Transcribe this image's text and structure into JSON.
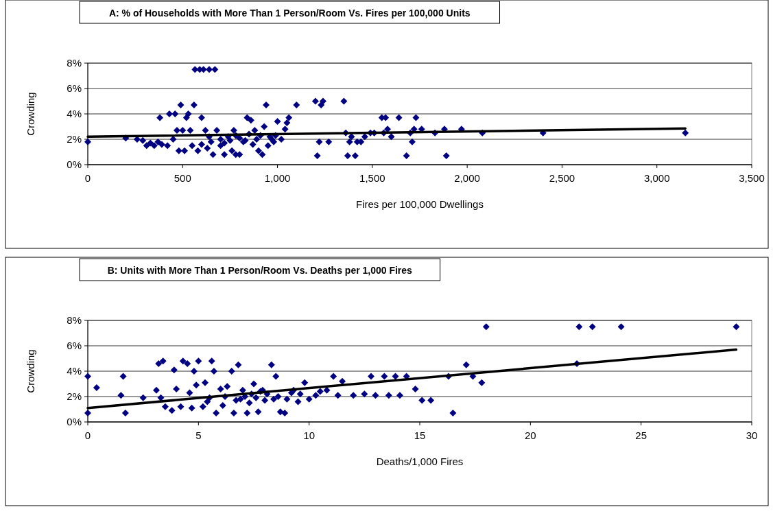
{
  "chart_data": [
    {
      "type": "scatter",
      "title": "A: % of Households with More Than 1 Person/Room Vs. Fires per 100,000 Units",
      "xlabel": "Fires per 100,000 Dwellings",
      "ylabel": "Crowding",
      "xlim": [
        0,
        3500
      ],
      "xticks": [
        0,
        500,
        {
          "value": 1000,
          "label": "1,000"
        },
        {
          "value": 1500,
          "label": "1,500"
        },
        {
          "value": 2000,
          "label": "2,000"
        },
        {
          "value": 2500,
          "label": "2,500"
        },
        {
          "value": 3000,
          "label": "3,000"
        },
        {
          "value": 3500,
          "label": "3,500"
        }
      ],
      "ylim": [
        0,
        8
      ],
      "yticks": [
        {
          "value": 0,
          "label": "0%"
        },
        {
          "value": 2,
          "label": "2%"
        },
        {
          "value": 4,
          "label": "4%"
        },
        {
          "value": 6,
          "label": "6%"
        },
        {
          "value": 8,
          "label": "8%"
        }
      ],
      "grid": "y",
      "series": [
        {
          "color": "#000080",
          "marker": "diamond",
          "x": [
            0,
            200,
            260,
            290,
            310,
            330,
            350,
            370,
            390,
            380,
            420,
            430,
            450,
            460,
            470,
            480,
            490,
            500,
            510,
            520,
            530,
            540,
            550,
            560,
            565,
            580,
            590,
            600,
            610,
            620,
            630,
            640,
            650,
            670,
            660,
            680,
            700,
            720,
            740,
            760,
            770,
            780,
            800,
            820,
            840,
            860,
            880,
            900,
            920,
            930,
            940,
            960,
            980,
            1000,
            1020,
            1040,
            1050,
            1060,
            1100,
            1200,
            1210,
            1220,
            1240,
            1230,
            1270,
            1350,
            1360,
            1370,
            1380,
            1390,
            1410,
            1420,
            1440,
            1460,
            1490,
            1510,
            1550,
            1570,
            1560,
            1580,
            1600,
            1640,
            1680,
            1700,
            1710,
            1720,
            1730,
            1760,
            1830,
            1880,
            1890,
            1970,
            2080,
            2400,
            3150,
            600,
            640,
            700,
            720,
            750,
            780,
            800,
            830,
            850,
            870,
            890,
            910,
            950,
            970,
            990
          ],
          "values": [
            1.8,
            2.1,
            2.0,
            1.9,
            1.5,
            1.7,
            1.5,
            1.8,
            1.6,
            3.7,
            1.5,
            4.0,
            2.0,
            4.0,
            2.7,
            1.1,
            4.7,
            2.7,
            1.1,
            3.7,
            4.0,
            2.7,
            1.5,
            4.7,
            7.5,
            1.1,
            7.5,
            3.7,
            7.5,
            2.7,
            1.3,
            7.5,
            1.8,
            7.5,
            0.8,
            2.7,
            1.5,
            0.8,
            2.2,
            1.1,
            2.7,
            0.8,
            0.8,
            1.8,
            3.7,
            3.5,
            2.7,
            1.1,
            0.8,
            3.0,
            4.7,
            2.2,
            1.8,
            3.4,
            2.0,
            2.8,
            3.3,
            3.7,
            4.7,
            5.0,
            0.7,
            1.8,
            5.0,
            4.7,
            1.8,
            5.0,
            2.5,
            0.7,
            1.8,
            2.2,
            0.7,
            1.8,
            1.8,
            2.2,
            2.5,
            2.5,
            3.7,
            3.7,
            2.5,
            2.8,
            2.2,
            3.7,
            0.7,
            2.5,
            1.8,
            2.8,
            3.7,
            2.8,
            2.5,
            2.8,
            0.7,
            2.8,
            2.5,
            2.5,
            2.5,
            1.6,
            2.2,
            2.0,
            1.7,
            1.9,
            2.3,
            2.1,
            1.9,
            2.4,
            1.6,
            2.0,
            2.3,
            1.5,
            2.0,
            2.3
          ]
        },
        {
          "type": "line",
          "marker": "none",
          "color": "#000000",
          "x": [
            0,
            3150
          ],
          "values": [
            2.2,
            2.85
          ]
        }
      ]
    },
    {
      "type": "scatter",
      "title": "B: Units with More Than 1 Person/Room Vs. Deaths per 1,000 Fires",
      "xlabel": "Deaths/1,000 Fires",
      "ylabel": "Crowding",
      "xlim": [
        0,
        30
      ],
      "xticks": [
        0,
        5,
        10,
        15,
        20,
        25,
        30
      ],
      "ylim": [
        0,
        8
      ],
      "yticks": [
        {
          "value": 0,
          "label": "0%"
        },
        {
          "value": 2,
          "label": "2%"
        },
        {
          "value": 4,
          "label": "4%"
        },
        {
          "value": 6,
          "label": "6%"
        },
        {
          "value": 8,
          "label": "8%"
        }
      ],
      "grid": "y",
      "series": [
        {
          "color": "#000080",
          "marker": "diamond",
          "x": [
            0,
            0,
            0.4,
            1.5,
            1.6,
            1.7,
            2.5,
            3.1,
            3.2,
            3.3,
            3.4,
            3.5,
            3.8,
            3.9,
            4.0,
            4.2,
            4.3,
            4.5,
            4.6,
            4.7,
            4.8,
            4.9,
            5.0,
            5.2,
            5.3,
            5.4,
            5.6,
            5.7,
            5.8,
            6.0,
            6.1,
            6.3,
            6.5,
            6.6,
            6.8,
            6.9,
            7.0,
            7.2,
            7.4,
            7.5,
            7.7,
            7.9,
            8.1,
            8.3,
            8.4,
            8.5,
            8.7,
            8.9,
            9.0,
            9.3,
            9.6,
            9.8,
            10.0,
            10.3,
            10.8,
            11.1,
            11.3,
            11.5,
            12.0,
            12.5,
            12.8,
            13.0,
            13.4,
            13.6,
            13.9,
            14.1,
            14.4,
            14.8,
            15.1,
            15.5,
            16.3,
            16.5,
            17.1,
            17.4,
            17.8,
            18.0,
            22.1,
            22.2,
            22.8,
            24.1,
            29.3,
            5.5,
            6.2,
            6.7,
            7.1,
            7.3,
            7.6,
            7.8,
            8.0,
            8.6,
            9.2,
            9.5,
            10.5
          ],
          "values": [
            3.6,
            0.7,
            2.7,
            2.1,
            3.6,
            0.7,
            1.9,
            2.5,
            4.6,
            1.9,
            4.8,
            1.2,
            0.9,
            4.1,
            2.6,
            1.2,
            4.8,
            4.6,
            2.3,
            1.1,
            4.0,
            2.9,
            4.8,
            1.2,
            3.1,
            1.6,
            4.8,
            4.0,
            0.7,
            2.6,
            1.3,
            2.8,
            4.0,
            0.7,
            4.5,
            1.8,
            2.5,
            0.7,
            2.2,
            3.0,
            0.8,
            2.5,
            2.2,
            4.5,
            1.8,
            3.6,
            0.8,
            0.7,
            1.8,
            2.5,
            2.2,
            3.1,
            1.8,
            2.1,
            2.5,
            3.6,
            2.1,
            3.2,
            2.1,
            2.2,
            3.6,
            2.1,
            3.6,
            2.1,
            3.6,
            2.1,
            3.6,
            2.6,
            1.7,
            1.7,
            3.6,
            0.7,
            4.5,
            3.6,
            3.1,
            7.5,
            4.6,
            7.5,
            7.5,
            7.5,
            7.5,
            1.9,
            2.0,
            1.7,
            2.0,
            1.5,
            1.9,
            2.4,
            1.7,
            2.0,
            2.3,
            1.6,
            2.4
          ]
        },
        {
          "type": "line",
          "marker": "none",
          "color": "#000000",
          "x": [
            0,
            29.3
          ],
          "values": [
            1.1,
            5.7
          ]
        }
      ]
    }
  ]
}
